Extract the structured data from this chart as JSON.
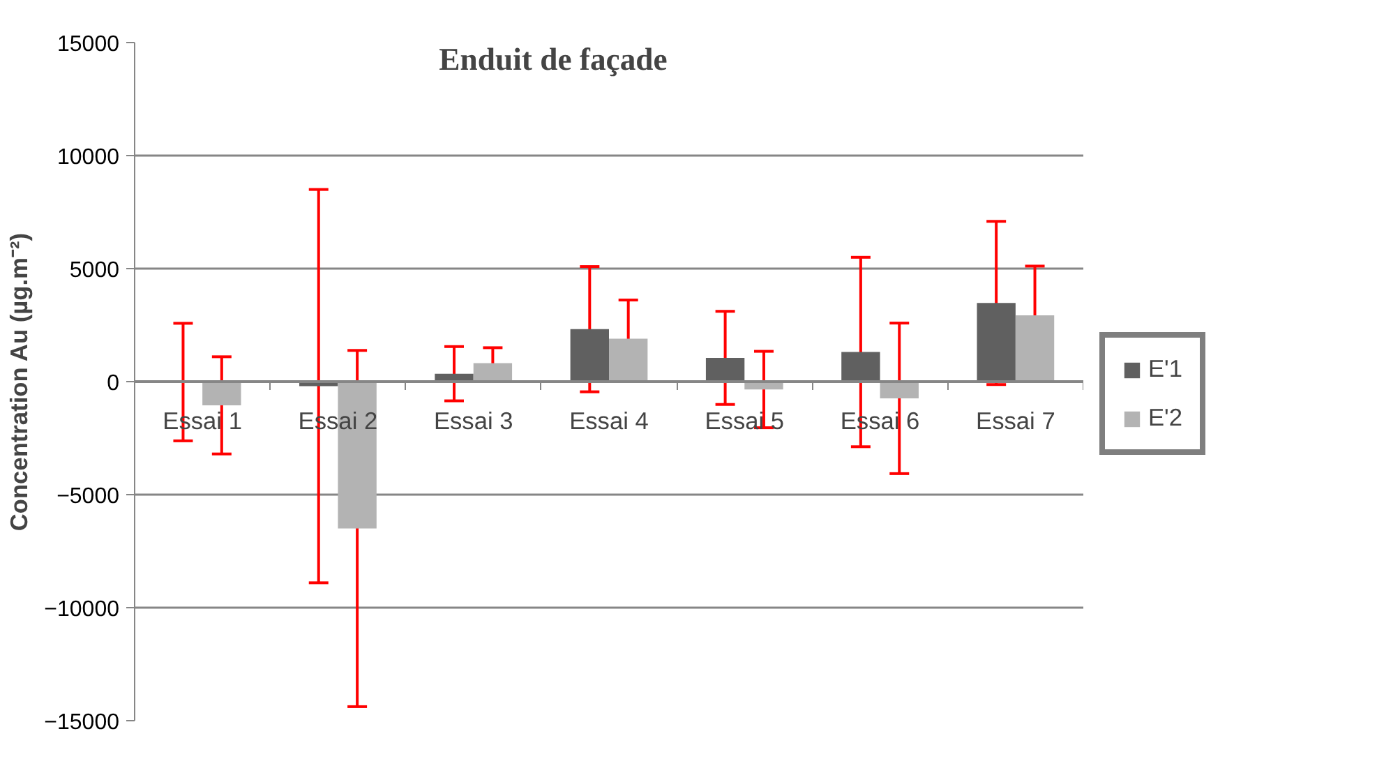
{
  "chart_data": {
    "type": "bar",
    "title": "Enduit de façade",
    "ylabel": "Concentration Au (µg.m⁻²)",
    "categories": [
      "Essai 1",
      "Essai 2",
      "Essai 3",
      "Essai 4",
      "Essai 5",
      "Essai 6",
      "Essai 7"
    ],
    "series": [
      {
        "name": "E'1",
        "color": "#606060",
        "values": [
          -20,
          -200,
          350,
          2320,
          1050,
          1310,
          3480
        ],
        "errors": [
          2600,
          8700,
          1200,
          2770,
          2060,
          4190,
          3610
        ]
      },
      {
        "name": "E'2",
        "color": "#b3b3b3",
        "values": [
          -1050,
          -6500,
          820,
          1900,
          -350,
          -740,
          2930
        ],
        "errors": [
          2150,
          7880,
          680,
          1710,
          1690,
          3330,
          2180
        ]
      }
    ],
    "ylim": [
      -15000,
      15000
    ],
    "yticks": [
      -15000,
      -10000,
      -5000,
      0,
      5000,
      10000,
      15000
    ],
    "grid": "y",
    "legend": "right"
  }
}
